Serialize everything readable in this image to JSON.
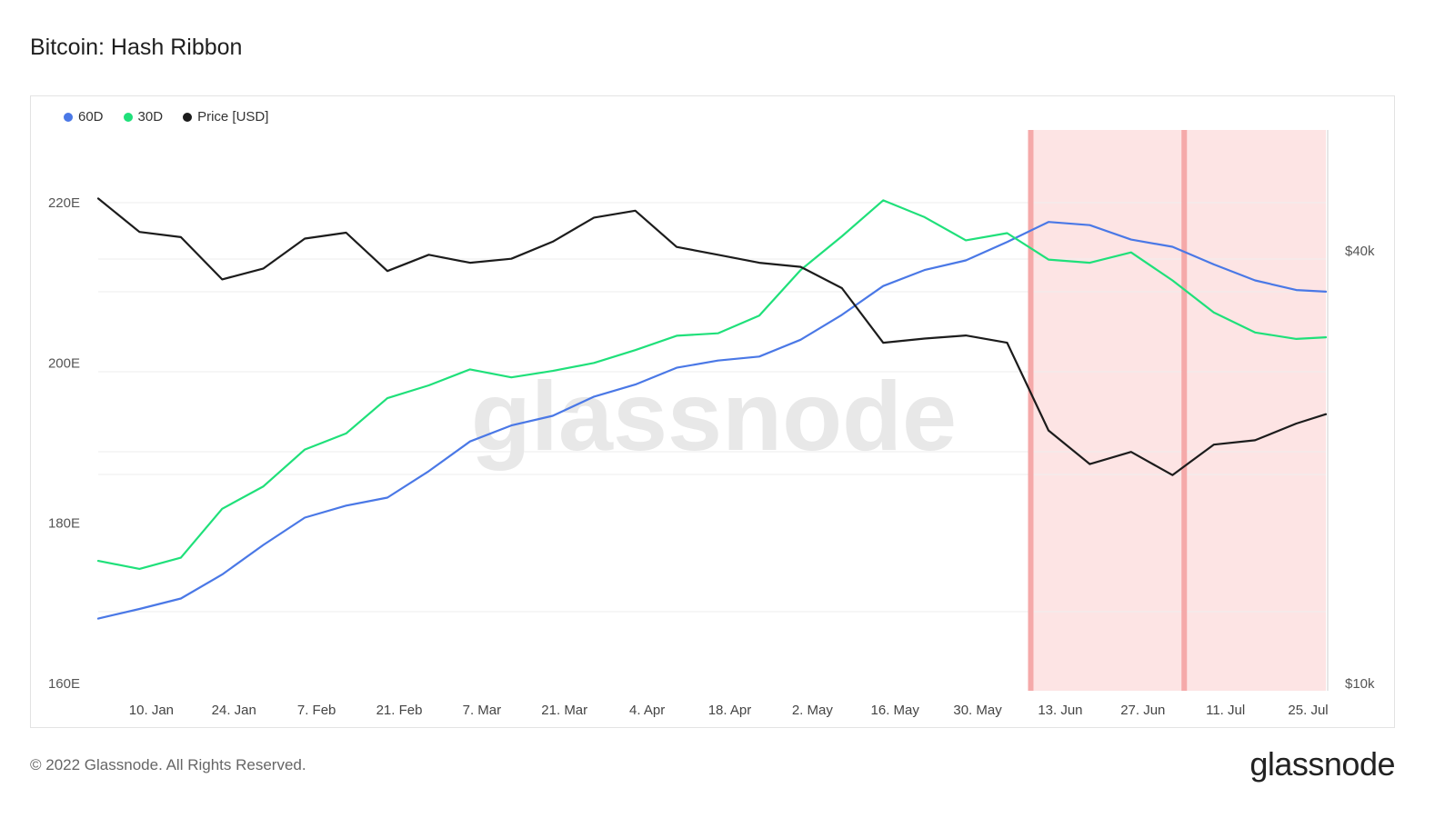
{
  "title": "Bitcoin: Hash Ribbon",
  "footer": {
    "copyright": "© 2022 Glassnode. All Rights Reserved.",
    "brand": "glassnode"
  },
  "watermark": "glassnode",
  "colors": {
    "s60": "#4a78e6",
    "s30": "#1fe07a",
    "price": "#1c1c1c",
    "shade": "#fde4e4",
    "shade_line": "#f5a9a9"
  },
  "chart_data": {
    "type": "line",
    "x_ticks": [
      "10. Jan",
      "24. Jan",
      "7. Feb",
      "21. Feb",
      "7. Mar",
      "21. Mar",
      "4. Apr",
      "18. Apr",
      "2. May",
      "16. May",
      "30. May",
      "13. Jun",
      "27. Jun",
      "11. Jul",
      "25. Jul"
    ],
    "y_left_ticks": [
      "160E",
      "180E",
      "200E",
      "220E"
    ],
    "y_left_range": [
      160,
      230
    ],
    "y_right_ticks": [
      "$10k",
      "$40k"
    ],
    "y_right_scale": "log",
    "x": [
      "2022-01-01",
      "2022-01-08",
      "2022-01-15",
      "2022-01-22",
      "2022-01-29",
      "2022-02-05",
      "2022-02-12",
      "2022-02-19",
      "2022-02-26",
      "2022-03-05",
      "2022-03-12",
      "2022-03-19",
      "2022-03-26",
      "2022-04-02",
      "2022-04-09",
      "2022-04-16",
      "2022-04-23",
      "2022-04-30",
      "2022-05-07",
      "2022-05-14",
      "2022-05-21",
      "2022-05-28",
      "2022-06-04",
      "2022-06-11",
      "2022-06-18",
      "2022-06-25",
      "2022-07-02",
      "2022-07-09",
      "2022-07-16",
      "2022-07-23",
      "2022-07-28"
    ],
    "series": [
      {
        "name": "60D",
        "color": "#4a78e6",
        "values": [
          168.1,
          169.3,
          170.6,
          173.6,
          177.3,
          180.7,
          182.2,
          183.2,
          186.5,
          190.2,
          192.2,
          193.4,
          195.8,
          197.3,
          199.4,
          200.3,
          200.8,
          202.9,
          206.0,
          209.6,
          211.6,
          212.8,
          215.1,
          217.6,
          217.2,
          215.4,
          214.5,
          212.3,
          210.3,
          209.1,
          208.9
        ]
      },
      {
        "name": "30D",
        "color": "#1fe07a",
        "values": [
          175.3,
          174.3,
          175.7,
          181.8,
          184.6,
          189.2,
          191.2,
          195.6,
          197.2,
          199.2,
          198.2,
          199.0,
          200.0,
          201.6,
          203.4,
          203.7,
          205.9,
          211.6,
          215.8,
          220.3,
          218.2,
          215.3,
          216.2,
          212.9,
          212.5,
          213.8,
          210.3,
          206.3,
          203.8,
          203.0,
          203.2
        ]
      },
      {
        "name": "Price [USD]",
        "color": "#1c1c1c",
        "values": [
          47300,
          42500,
          41800,
          36500,
          37800,
          41600,
          42400,
          37500,
          39500,
          38500,
          39000,
          41200,
          44500,
          45500,
          40500,
          39500,
          38500,
          38000,
          35500,
          29800,
          30200,
          30500,
          29800,
          22500,
          20200,
          21000,
          19500,
          21500,
          21800,
          23000,
          23700
        ]
      }
    ],
    "highlight_range": [
      "2022-06-08",
      "2022-07-28"
    ],
    "highlight_lines": [
      "2022-06-08",
      "2022-07-04"
    ]
  }
}
